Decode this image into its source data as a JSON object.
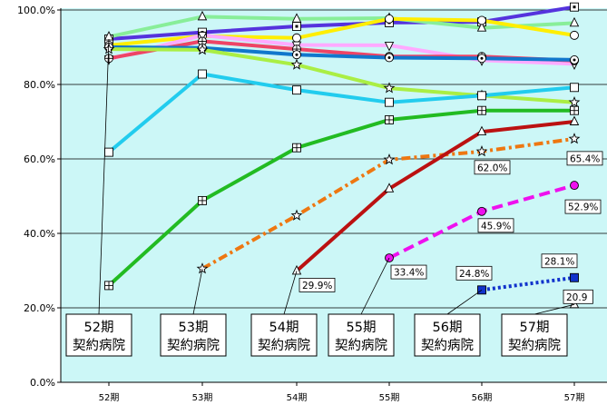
{
  "chart_data": {
    "type": "line",
    "title": "",
    "xlabel": "",
    "ylabel": "",
    "categories": [
      "52期",
      "53期",
      "54期",
      "55期",
      "56期",
      "57期"
    ],
    "ylim": [
      0,
      100
    ],
    "y_ticks": [
      "0.0%",
      "20.0%",
      "40.0%",
      "60.0%",
      "80.0%",
      "100.0%"
    ],
    "grid": true,
    "plot_background": "#ccf7f7",
    "series": [
      {
        "color": "#5533dd",
        "marker": "square-dot",
        "dash": "solid",
        "values": [
          92.2,
          94.0,
          95.6,
          96.6,
          96.8,
          100.8
        ]
      },
      {
        "color": "#88ee99",
        "marker": "triangle",
        "dash": "solid",
        "values": [
          92.8,
          98.2,
          97.6,
          97.8,
          95.2,
          96.5
        ]
      },
      {
        "color": "#ffee00",
        "marker": "circle",
        "dash": "solid",
        "values": [
          90.5,
          93.0,
          92.5,
          97.6,
          97.2,
          93.2
        ]
      },
      {
        "color": "#ffaaff",
        "marker": "triangle-down",
        "dash": "solid",
        "values": [
          86.8,
          93.2,
          90.6,
          90.5,
          86.5,
          85.5
        ]
      },
      {
        "color": "#ee4466",
        "marker": "circle-cross",
        "dash": "solid",
        "values": [
          87.0,
          91.6,
          89.5,
          87.5,
          87.5,
          86.4
        ]
      },
      {
        "color": "#1177cc",
        "marker": "circle-dot",
        "dash": "solid",
        "values": [
          90.0,
          89.8,
          88.0,
          87.2,
          87.0,
          86.6
        ]
      },
      {
        "color": "#aaee44",
        "marker": "star",
        "dash": "solid",
        "values": [
          89.5,
          89.3,
          85.3,
          79.0,
          77.0,
          75.2
        ]
      },
      {
        "color": "#22ccee",
        "marker": "square",
        "dash": "solid",
        "values": [
          61.8,
          82.8,
          78.5,
          75.2,
          77.0,
          79.2
        ]
      },
      {
        "color": "#22bb22",
        "marker": "square-cross",
        "dash": "solid",
        "values": [
          26.0,
          48.8,
          63.0,
          70.5,
          73.0,
          73.0
        ]
      },
      {
        "color": "#ee7711",
        "marker": "star",
        "dash": "dashdot",
        "values": [
          null,
          30.5,
          44.8,
          59.8,
          62.0,
          65.4
        ],
        "labels": [
          null,
          null,
          null,
          null,
          "62.0%",
          "65.4%"
        ]
      },
      {
        "color": "#bb1111",
        "marker": "triangle",
        "dash": "solid",
        "values": [
          null,
          null,
          29.9,
          52.0,
          67.3,
          70.0
        ],
        "labels": [
          null,
          null,
          "29.9%",
          null,
          null,
          null
        ]
      },
      {
        "color": "#ee11ee",
        "marker": "circle-filled",
        "dash": "dash",
        "values": [
          null,
          null,
          null,
          33.4,
          45.9,
          52.9
        ],
        "labels": [
          null,
          null,
          null,
          "33.4%",
          "45.9%",
          "52.9%"
        ]
      },
      {
        "color": "#1133cc",
        "marker": "square-filled",
        "dash": "dot",
        "values": [
          null,
          null,
          null,
          null,
          24.8,
          28.1
        ],
        "labels": [
          null,
          null,
          null,
          null,
          "24.8%",
          "28.1%"
        ]
      },
      {
        "color": "#aaaaaa",
        "marker": "triangle",
        "dash": "solid",
        "values": [
          null,
          null,
          null,
          null,
          null,
          20.9
        ],
        "labels": [
          null,
          null,
          null,
          null,
          null,
          "20.9"
        ]
      }
    ],
    "annotations": [
      {
        "line1": "52期",
        "line2": "契約病院",
        "x_index": 0
      },
      {
        "line1": "53期",
        "line2": "契約病院",
        "x_index": 1
      },
      {
        "line1": "54期",
        "line2": "契約病院",
        "x_index": 2
      },
      {
        "line1": "55期",
        "line2": "契約病院",
        "x_index": 3
      },
      {
        "line1": "56期",
        "line2": "契約病院",
        "x_index": 4
      },
      {
        "line1": "57期",
        "line2": "契約病院",
        "x_index": 5
      }
    ]
  }
}
